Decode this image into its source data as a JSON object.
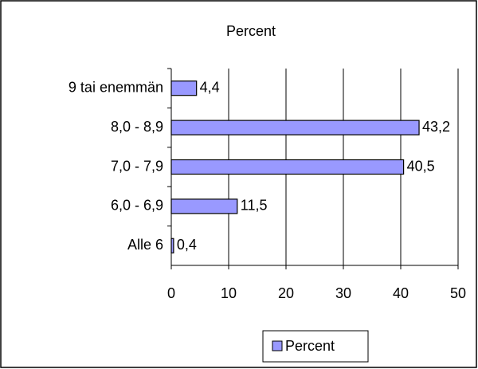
{
  "chart_data": {
    "type": "bar",
    "orientation": "horizontal",
    "title": "Percent",
    "categories": [
      "9 tai enemmän",
      "8,0 - 8,9",
      "7,0 - 7,9",
      "6,0 - 6,9",
      "Alle 6"
    ],
    "series": [
      {
        "name": "Percent",
        "color": "#9999ff",
        "values": [
          4.4,
          43.2,
          40.5,
          11.5,
          0.4
        ],
        "value_labels": [
          "4,4",
          "43,2",
          "40,5",
          "11,5",
          "0,4"
        ]
      }
    ],
    "xlim": [
      0,
      50
    ],
    "xticks": [
      0,
      10,
      20,
      30,
      40,
      50
    ],
    "grid": true,
    "legend": "bottom"
  }
}
